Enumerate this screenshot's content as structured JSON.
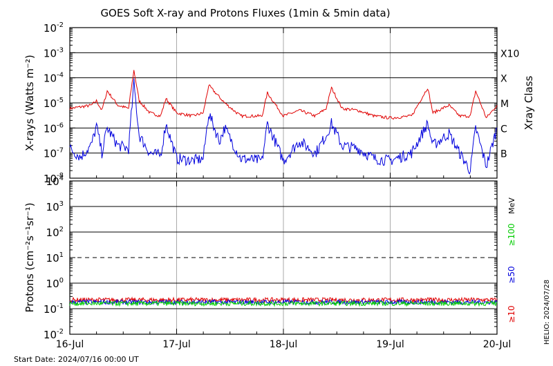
{
  "title": "GOES Soft X-ray and Protons Fluxes   (1min & 5min data)",
  "start_date": "Start Date: 2024/07/16 00:00 UT",
  "side_stamp": "HELIO: 2024/07/28",
  "colors": {
    "xray_long": "#e00000",
    "xray_short": "#0000dd",
    "p10": "#e00000",
    "p50": "#0000dd",
    "p100": "#00cc00"
  },
  "chart_data": [
    {
      "type": "line",
      "name": "xray",
      "ylabel": "X-rays (Watts m⁻²)",
      "yscale": "log",
      "ylim": [
        1e-08,
        0.01
      ],
      "ytick_exponents": [
        "-2",
        "-3",
        "-4",
        "-5",
        "-6",
        "-7",
        "-8"
      ],
      "right_axis_label": "Xray Class",
      "class_labels": [
        "X10",
        "X",
        "M",
        "C",
        "B"
      ],
      "xlim_days": [
        16,
        20
      ],
      "x_tick_labels": [
        "16-Jul",
        "17-Jul",
        "18-Jul",
        "19-Jul",
        "20-Jul"
      ],
      "series": [
        {
          "color": "#e00000",
          "x": [
            16.0,
            16.2,
            16.25,
            16.3,
            16.35,
            16.45,
            16.55,
            16.6,
            16.65,
            16.75,
            16.85,
            16.9,
            17.0,
            17.15,
            17.25,
            17.3,
            17.45,
            17.6,
            17.8,
            17.85,
            18.0,
            18.15,
            18.3,
            18.4,
            18.45,
            18.55,
            18.7,
            18.85,
            19.0,
            19.2,
            19.35,
            19.4,
            19.55,
            19.65,
            19.75,
            19.8,
            19.9,
            20.0
          ],
          "y": [
            6e-06,
            8e-06,
            1.2e-05,
            5e-06,
            3e-05,
            8e-06,
            6e-06,
            0.0002,
            1.2e-05,
            4e-06,
            3e-06,
            1.5e-05,
            4e-06,
            3e-06,
            4e-06,
            5e-05,
            1e-05,
            3e-06,
            3e-06,
            2.5e-05,
            3e-06,
            5e-06,
            3e-06,
            6e-06,
            4e-05,
            6e-06,
            5e-06,
            3e-06,
            2.5e-06,
            3e-06,
            4e-05,
            4e-06,
            8e-06,
            3e-06,
            3e-06,
            3e-05,
            2.5e-06,
            8e-06
          ]
        },
        {
          "color": "#0000dd",
          "x": [
            16.0,
            16.1,
            16.2,
            16.25,
            16.3,
            16.35,
            16.45,
            16.55,
            16.6,
            16.65,
            16.75,
            16.85,
            16.9,
            17.0,
            17.15,
            17.25,
            17.3,
            17.4,
            17.45,
            17.6,
            17.8,
            17.85,
            18.0,
            18.15,
            18.3,
            18.4,
            18.45,
            18.55,
            18.7,
            18.85,
            19.0,
            19.2,
            19.35,
            19.4,
            19.55,
            19.65,
            19.75,
            19.8,
            19.9,
            20.0
          ],
          "y": [
            1.5e-07,
            7e-08,
            2e-07,
            1.2e-06,
            1e-07,
            1e-06,
            2e-07,
            1.5e-07,
            6e-05,
            5e-07,
            1e-07,
            8e-08,
            1.5e-06,
            6e-08,
            5e-08,
            6e-08,
            4e-06,
            3e-07,
            1e-06,
            6e-08,
            5e-08,
            1.5e-06,
            5e-08,
            3e-07,
            1e-07,
            5e-07,
            1.5e-06,
            2e-07,
            1.5e-07,
            6e-08,
            5e-08,
            1e-07,
            1.5e-06,
            2e-07,
            6e-07,
            1e-07,
            2e-08,
            1e-06,
            3e-08,
            1e-06
          ]
        }
      ]
    },
    {
      "type": "line",
      "name": "protons",
      "ylabel": "Protons (cm⁻²s⁻¹sr⁻¹)",
      "yscale": "log",
      "ylim": [
        0.01,
        10000.0
      ],
      "ytick_exponents": [
        "4",
        "3",
        "2",
        "1",
        "0",
        "-1",
        "-2"
      ],
      "dashed_level": 10,
      "unit_label": "MeV",
      "xlim_days": [
        16,
        20
      ],
      "series": [
        {
          "name": "≥100",
          "color": "#00cc00",
          "level": 0.16
        },
        {
          "name": "≥50",
          "color": "#0000dd",
          "level": 0.18
        },
        {
          "name": "≥10",
          "color": "#e00000",
          "level": 0.22
        }
      ]
    }
  ]
}
